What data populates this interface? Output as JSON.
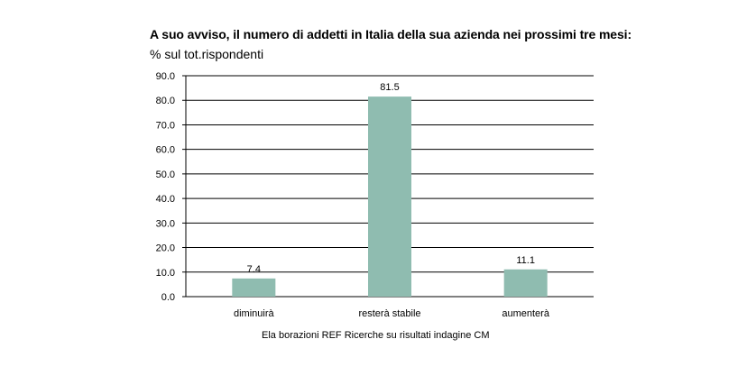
{
  "chart_data": {
    "type": "bar",
    "title": "A suo avviso, il numero di addetti in Italia della sua azienda nei prossimi tre mesi:",
    "subtitle": "% sul tot.rispondenti",
    "categories": [
      "diminuirà",
      "resterà stabile",
      "aumenterà"
    ],
    "values": [
      7.4,
      81.5,
      11.1
    ],
    "data_labels": [
      "7.4",
      "81.5",
      "11.1"
    ],
    "xlabel": "",
    "ylabel": "",
    "ylim": [
      0,
      90
    ],
    "yticks": [
      "0.0",
      "10.0",
      "20.0",
      "30.0",
      "40.0",
      "50.0",
      "60.0",
      "70.0",
      "80.0",
      "90.0"
    ],
    "grid": true,
    "legend": "none",
    "bar_color": "#8fbcb0",
    "caption": "Ela borazioni REF Ricerche su risultati indagine CM"
  }
}
